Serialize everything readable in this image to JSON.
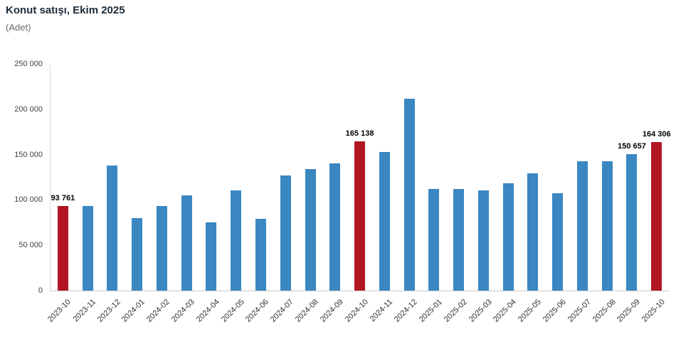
{
  "header": {
    "title": "Konut satışı, Ekim 2025",
    "subtitle": "(Adet)"
  },
  "chart_data": {
    "type": "bar",
    "title": "Konut satışı, Ekim 2025",
    "xlabel": "",
    "ylabel": "(Adet)",
    "ylim": [
      0,
      250000
    ],
    "grid": false,
    "legend": false,
    "categories": [
      "2023-10",
      "2023-11",
      "2023-12",
      "2024-01",
      "2024-02",
      "2024-03",
      "2024-04",
      "2024-05",
      "2024-06",
      "2024-07",
      "2024-08",
      "2024-09",
      "2024-10",
      "2024-11",
      "2024-12",
      "2025-01",
      "2025-02",
      "2025-03",
      "2025-04",
      "2025-05",
      "2025-06",
      "2025-07",
      "2025-08",
      "2025-09",
      "2025-10"
    ],
    "values": [
      93761,
      93178,
      138577,
      80308,
      93902,
      105476,
      75569,
      110588,
      79313,
      127088,
      134155,
      140919,
      165138,
      153014,
      212637,
      112173,
      112818,
      110795,
      118359,
      130025,
      107723,
      142858,
      143319,
      150657,
      164306
    ],
    "ytick_values": [
      0,
      50000,
      100000,
      150000,
      200000,
      250000
    ],
    "ytick_labels": [
      "0",
      "50 000",
      "100 000",
      "150 000",
      "200 000",
      "250 000"
    ],
    "highlight_indices": [
      0,
      12,
      24
    ],
    "labeled_points": [
      {
        "index": 0,
        "text": "93 761"
      },
      {
        "index": 12,
        "text": "165 138"
      },
      {
        "index": 23,
        "text": "150 657"
      },
      {
        "index": 24,
        "text": "164 306"
      }
    ],
    "colors": {
      "bar_default": "#3a87c2",
      "bar_highlight": "#b11622",
      "axis_line": "#dcdcdc",
      "tick_text": "#3f3f3f",
      "value_label_text": "#000000",
      "title_text": "#1c2b39",
      "subtitle_text": "#6b6b6b"
    }
  }
}
